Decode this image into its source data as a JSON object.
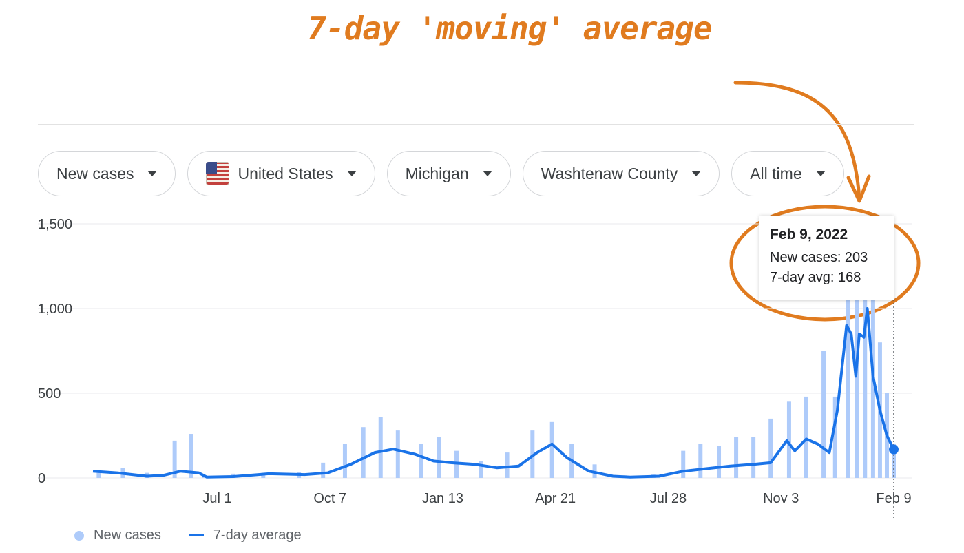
{
  "annotation": {
    "title": "7-day 'moving' average",
    "accent_color": "#e07b1f"
  },
  "filters": [
    {
      "label": "New cases",
      "icon": "chevron-down-icon"
    },
    {
      "label": "United States",
      "icon": "us-flag-icon"
    },
    {
      "label": "Michigan",
      "icon": "chevron-down-icon"
    },
    {
      "label": "Washtenaw County",
      "icon": "chevron-down-icon"
    },
    {
      "label": "All time",
      "icon": "chevron-down-icon"
    }
  ],
  "tooltip": {
    "date": "Feb 9, 2022",
    "new_cases": "New cases: 203",
    "avg": "7-day avg: 168"
  },
  "legend": {
    "bars": "New cases",
    "line": "7-day average"
  },
  "colors": {
    "bars": "#aecbfa",
    "line": "#1a73e8",
    "grid": "#e8eaed"
  },
  "chart_data": {
    "type": "bar",
    "title": "",
    "xlabel": "",
    "ylabel": "",
    "ylim": [
      0,
      1500
    ],
    "yticks": [
      0,
      500,
      1000,
      1500
    ],
    "ytick_labels": [
      "0",
      "500",
      "1,000",
      "1,500"
    ],
    "xtick_labels": [
      "Jul 1",
      "Oct 7",
      "Jan 13",
      "Apr 21",
      "Jul 28",
      "Nov 3",
      "Feb 9"
    ],
    "xticks": [
      "2020-07-01",
      "2020-10-07",
      "2021-01-13",
      "2021-04-21",
      "2021-07-28",
      "2021-11-03",
      "2022-02-09"
    ],
    "x_range": [
      "2020-03-15",
      "2022-02-09"
    ],
    "grid": "horizontal",
    "legend_position": "bottom-left",
    "series": [
      {
        "name": "New cases",
        "kind": "bar",
        "points": [
          [
            "2020-03-20",
            30
          ],
          [
            "2020-04-10",
            60
          ],
          [
            "2020-05-01",
            30
          ],
          [
            "2020-05-25",
            220
          ],
          [
            "2020-06-08",
            260
          ],
          [
            "2020-06-20",
            10
          ],
          [
            "2020-07-15",
            25
          ],
          [
            "2020-08-10",
            30
          ],
          [
            "2020-09-10",
            35
          ],
          [
            "2020-10-01",
            90
          ],
          [
            "2020-10-20",
            200
          ],
          [
            "2020-11-05",
            300
          ],
          [
            "2020-11-20",
            360
          ],
          [
            "2020-12-05",
            280
          ],
          [
            "2020-12-25",
            200
          ],
          [
            "2021-01-10",
            240
          ],
          [
            "2021-01-25",
            160
          ],
          [
            "2021-02-15",
            100
          ],
          [
            "2021-03-10",
            150
          ],
          [
            "2021-04-01",
            280
          ],
          [
            "2021-04-18",
            330
          ],
          [
            "2021-05-05",
            200
          ],
          [
            "2021-05-25",
            80
          ],
          [
            "2021-06-20",
            15
          ],
          [
            "2021-07-15",
            20
          ],
          [
            "2021-08-10",
            160
          ],
          [
            "2021-08-25",
            200
          ],
          [
            "2021-09-10",
            190
          ],
          [
            "2021-09-25",
            240
          ],
          [
            "2021-10-10",
            240
          ],
          [
            "2021-10-25",
            350
          ],
          [
            "2021-11-10",
            450
          ],
          [
            "2021-11-25",
            480
          ],
          [
            "2021-12-10",
            750
          ],
          [
            "2021-12-20",
            480
          ],
          [
            "2021-12-31",
            1500
          ],
          [
            "2022-01-08",
            1300
          ],
          [
            "2022-01-15",
            1200
          ],
          [
            "2022-01-22",
            1100
          ],
          [
            "2022-01-28",
            800
          ],
          [
            "2022-02-03",
            500
          ],
          [
            "2022-02-09",
            203
          ]
        ]
      },
      {
        "name": "7-day average",
        "kind": "line",
        "points": [
          [
            "2020-03-15",
            40
          ],
          [
            "2020-04-05",
            30
          ],
          [
            "2020-05-01",
            10
          ],
          [
            "2020-05-15",
            15
          ],
          [
            "2020-05-30",
            40
          ],
          [
            "2020-06-15",
            30
          ],
          [
            "2020-06-22",
            5
          ],
          [
            "2020-07-15",
            8
          ],
          [
            "2020-08-15",
            25
          ],
          [
            "2020-09-15",
            20
          ],
          [
            "2020-10-05",
            30
          ],
          [
            "2020-10-25",
            80
          ],
          [
            "2020-11-15",
            150
          ],
          [
            "2020-12-01",
            170
          ],
          [
            "2020-12-20",
            140
          ],
          [
            "2021-01-05",
            100
          ],
          [
            "2021-01-20",
            90
          ],
          [
            "2021-02-10",
            80
          ],
          [
            "2021-03-01",
            60
          ],
          [
            "2021-03-20",
            70
          ],
          [
            "2021-04-05",
            150
          ],
          [
            "2021-04-18",
            200
          ],
          [
            "2021-05-01",
            120
          ],
          [
            "2021-05-20",
            40
          ],
          [
            "2021-06-10",
            10
          ],
          [
            "2021-06-25",
            5
          ],
          [
            "2021-07-20",
            10
          ],
          [
            "2021-08-10",
            40
          ],
          [
            "2021-08-30",
            55
          ],
          [
            "2021-09-20",
            70
          ],
          [
            "2021-10-10",
            80
          ],
          [
            "2021-10-25",
            90
          ],
          [
            "2021-11-08",
            220
          ],
          [
            "2021-11-15",
            160
          ],
          [
            "2021-11-25",
            230
          ],
          [
            "2021-12-05",
            200
          ],
          [
            "2021-12-15",
            150
          ],
          [
            "2021-12-22",
            400
          ],
          [
            "2021-12-30",
            900
          ],
          [
            "2022-01-03",
            850
          ],
          [
            "2022-01-07",
            600
          ],
          [
            "2022-01-10",
            850
          ],
          [
            "2022-01-14",
            830
          ],
          [
            "2022-01-17",
            1000
          ],
          [
            "2022-01-22",
            600
          ],
          [
            "2022-01-28",
            400
          ],
          [
            "2022-02-03",
            250
          ],
          [
            "2022-02-09",
            168
          ]
        ]
      }
    ]
  }
}
